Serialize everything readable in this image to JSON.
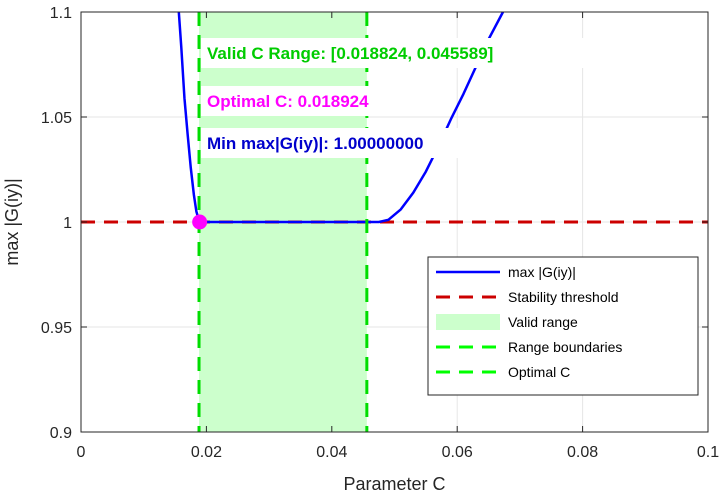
{
  "chart_data": {
    "type": "line",
    "xlabel": "Parameter C",
    "ylabel": "max |G(iy)|",
    "xlim": [
      0,
      0.1
    ],
    "ylim": [
      0.9,
      1.1
    ],
    "xticks": [
      0,
      0.02,
      0.04,
      0.06,
      0.08,
      0.1
    ],
    "xtick_labels": [
      "0",
      "0.02",
      "0.04",
      "0.06",
      "0.08",
      "0.1"
    ],
    "yticks": [
      0.9,
      0.95,
      1.0,
      1.05,
      1.1
    ],
    "ytick_labels": [
      "0.9",
      "0.95",
      "1",
      "1.05",
      "1.1"
    ],
    "grid": true,
    "series": [
      {
        "name": "max |G(iy)|",
        "color": "#0000ff",
        "x": [
          0.0156,
          0.016,
          0.0165,
          0.017,
          0.0175,
          0.018,
          0.0184,
          0.0188,
          0.0189,
          0.025,
          0.03,
          0.035,
          0.04,
          0.045,
          0.0475,
          0.049,
          0.051,
          0.053,
          0.055,
          0.057,
          0.059,
          0.061,
          0.063,
          0.065,
          0.0673
        ],
        "y": [
          1.1,
          1.083,
          1.059,
          1.042,
          1.026,
          1.013,
          1.005,
          1.001,
          1.0,
          1.0,
          1.0,
          1.0,
          1.0,
          1.0,
          1.0,
          1.001,
          1.006,
          1.014,
          1.024,
          1.036,
          1.049,
          1.061,
          1.074,
          1.087,
          1.1
        ]
      },
      {
        "name": "Stability threshold",
        "color": "#cc0000",
        "style": "dashed",
        "x": [
          0,
          0.1
        ],
        "y": [
          1.0,
          1.0
        ]
      }
    ],
    "valid_range": {
      "name": "Valid range",
      "x0": 0.018824,
      "x1": 0.045589,
      "color": "#ccffcc"
    },
    "range_boundaries": {
      "name": "Range boundaries",
      "x": [
        0.018824,
        0.045589
      ],
      "color": "#00dd00"
    },
    "optimal": {
      "name": "Optimal C",
      "x": 0.018924,
      "y": 1.0,
      "color": "#ff00ff"
    },
    "annotations": [
      {
        "text": "Valid C Range: [0.018824, 0.045589]",
        "color": "#00cc00"
      },
      {
        "text": "Optimal C: 0.018924",
        "color": "#ff00ff"
      },
      {
        "text": "Min max|G(iy)|: 1.00000000",
        "color": "#0000cc"
      }
    ],
    "legend": {
      "placement": "bottom-right",
      "entries": [
        {
          "label": "max |G(iy)|",
          "kind": "line",
          "color": "#0000ff"
        },
        {
          "label": "Stability threshold",
          "kind": "dash",
          "color": "#cc0000"
        },
        {
          "label": "Valid range",
          "kind": "patch",
          "color": "#ccffcc"
        },
        {
          "label": "Range boundaries",
          "kind": "dash",
          "color": "#00ff00"
        },
        {
          "label": "Optimal C",
          "kind": "dash",
          "color": "#00ff00"
        }
      ]
    }
  }
}
